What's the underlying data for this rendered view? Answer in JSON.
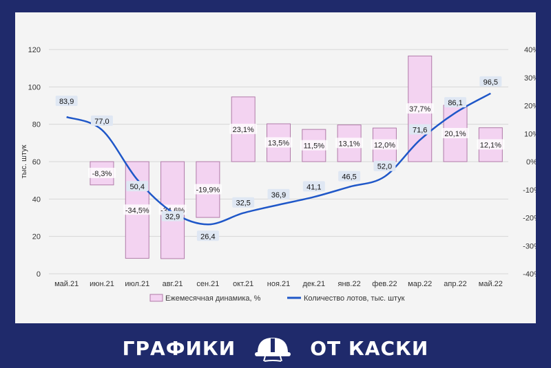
{
  "chart_data": {
    "type": "bar",
    "categories": [
      "май.21",
      "июн.21",
      "июл.21",
      "авг.21",
      "сен.21",
      "окт.21",
      "ноя.21",
      "дек.21",
      "янв.22",
      "фев.22",
      "мар.22",
      "апр.22",
      "май.22"
    ],
    "ylabel": "тыс. штук",
    "ylim": [
      0,
      120
    ],
    "y_ticks": [
      "0",
      "20",
      "40",
      "60",
      "80",
      "100",
      "120"
    ],
    "y2lim": [
      -40,
      40
    ],
    "y2_ticks": [
      "-40%",
      "-30%",
      "-20%",
      "-10%",
      "0%",
      "10%",
      "20%",
      "30%",
      "40%"
    ],
    "series": [
      {
        "name": "Ежемесячная динамика, %",
        "type": "bar",
        "axis": "right",
        "values": [
          null,
          -8.3,
          -34.5,
          -34.6,
          -19.9,
          23.1,
          13.5,
          11.5,
          13.1,
          12.0,
          37.7,
          20.1,
          12.1
        ],
        "labels": [
          "",
          "-8,3%",
          "-34,5%",
          "-34,6%",
          "-19,9%",
          "23,1%",
          "13,5%",
          "11,5%",
          "13,1%",
          "12,0%",
          "37,7%",
          "20,1%",
          "12,1%"
        ],
        "color": "#f3d3f1"
      },
      {
        "name": "Количество лотов, тыс. штук",
        "type": "line",
        "axis": "left",
        "values": [
          83.9,
          77.0,
          50.4,
          32.9,
          26.4,
          32.5,
          36.9,
          41.1,
          46.5,
          52.0,
          71.6,
          86.1,
          96.5
        ],
        "labels": [
          "83,9",
          "77,0",
          "50,4",
          "32,9",
          "26,4",
          "32,5",
          "36,9",
          "41,1",
          "46,5",
          "52,0",
          "71,6",
          "86,1",
          "96,5"
        ],
        "color": "#1f57c8"
      }
    ],
    "grid": true,
    "legend": "bottom"
  },
  "branding": {
    "left_text": "ГРАФИКИ",
    "right_text": "ОТ КАСКИ"
  },
  "colors": {
    "background": "#1f2a6b",
    "paper": "#f4f4f4",
    "bar_fill": "#f3d3f1",
    "bar_stroke": "#b07aa8",
    "line": "#1f57c8"
  }
}
